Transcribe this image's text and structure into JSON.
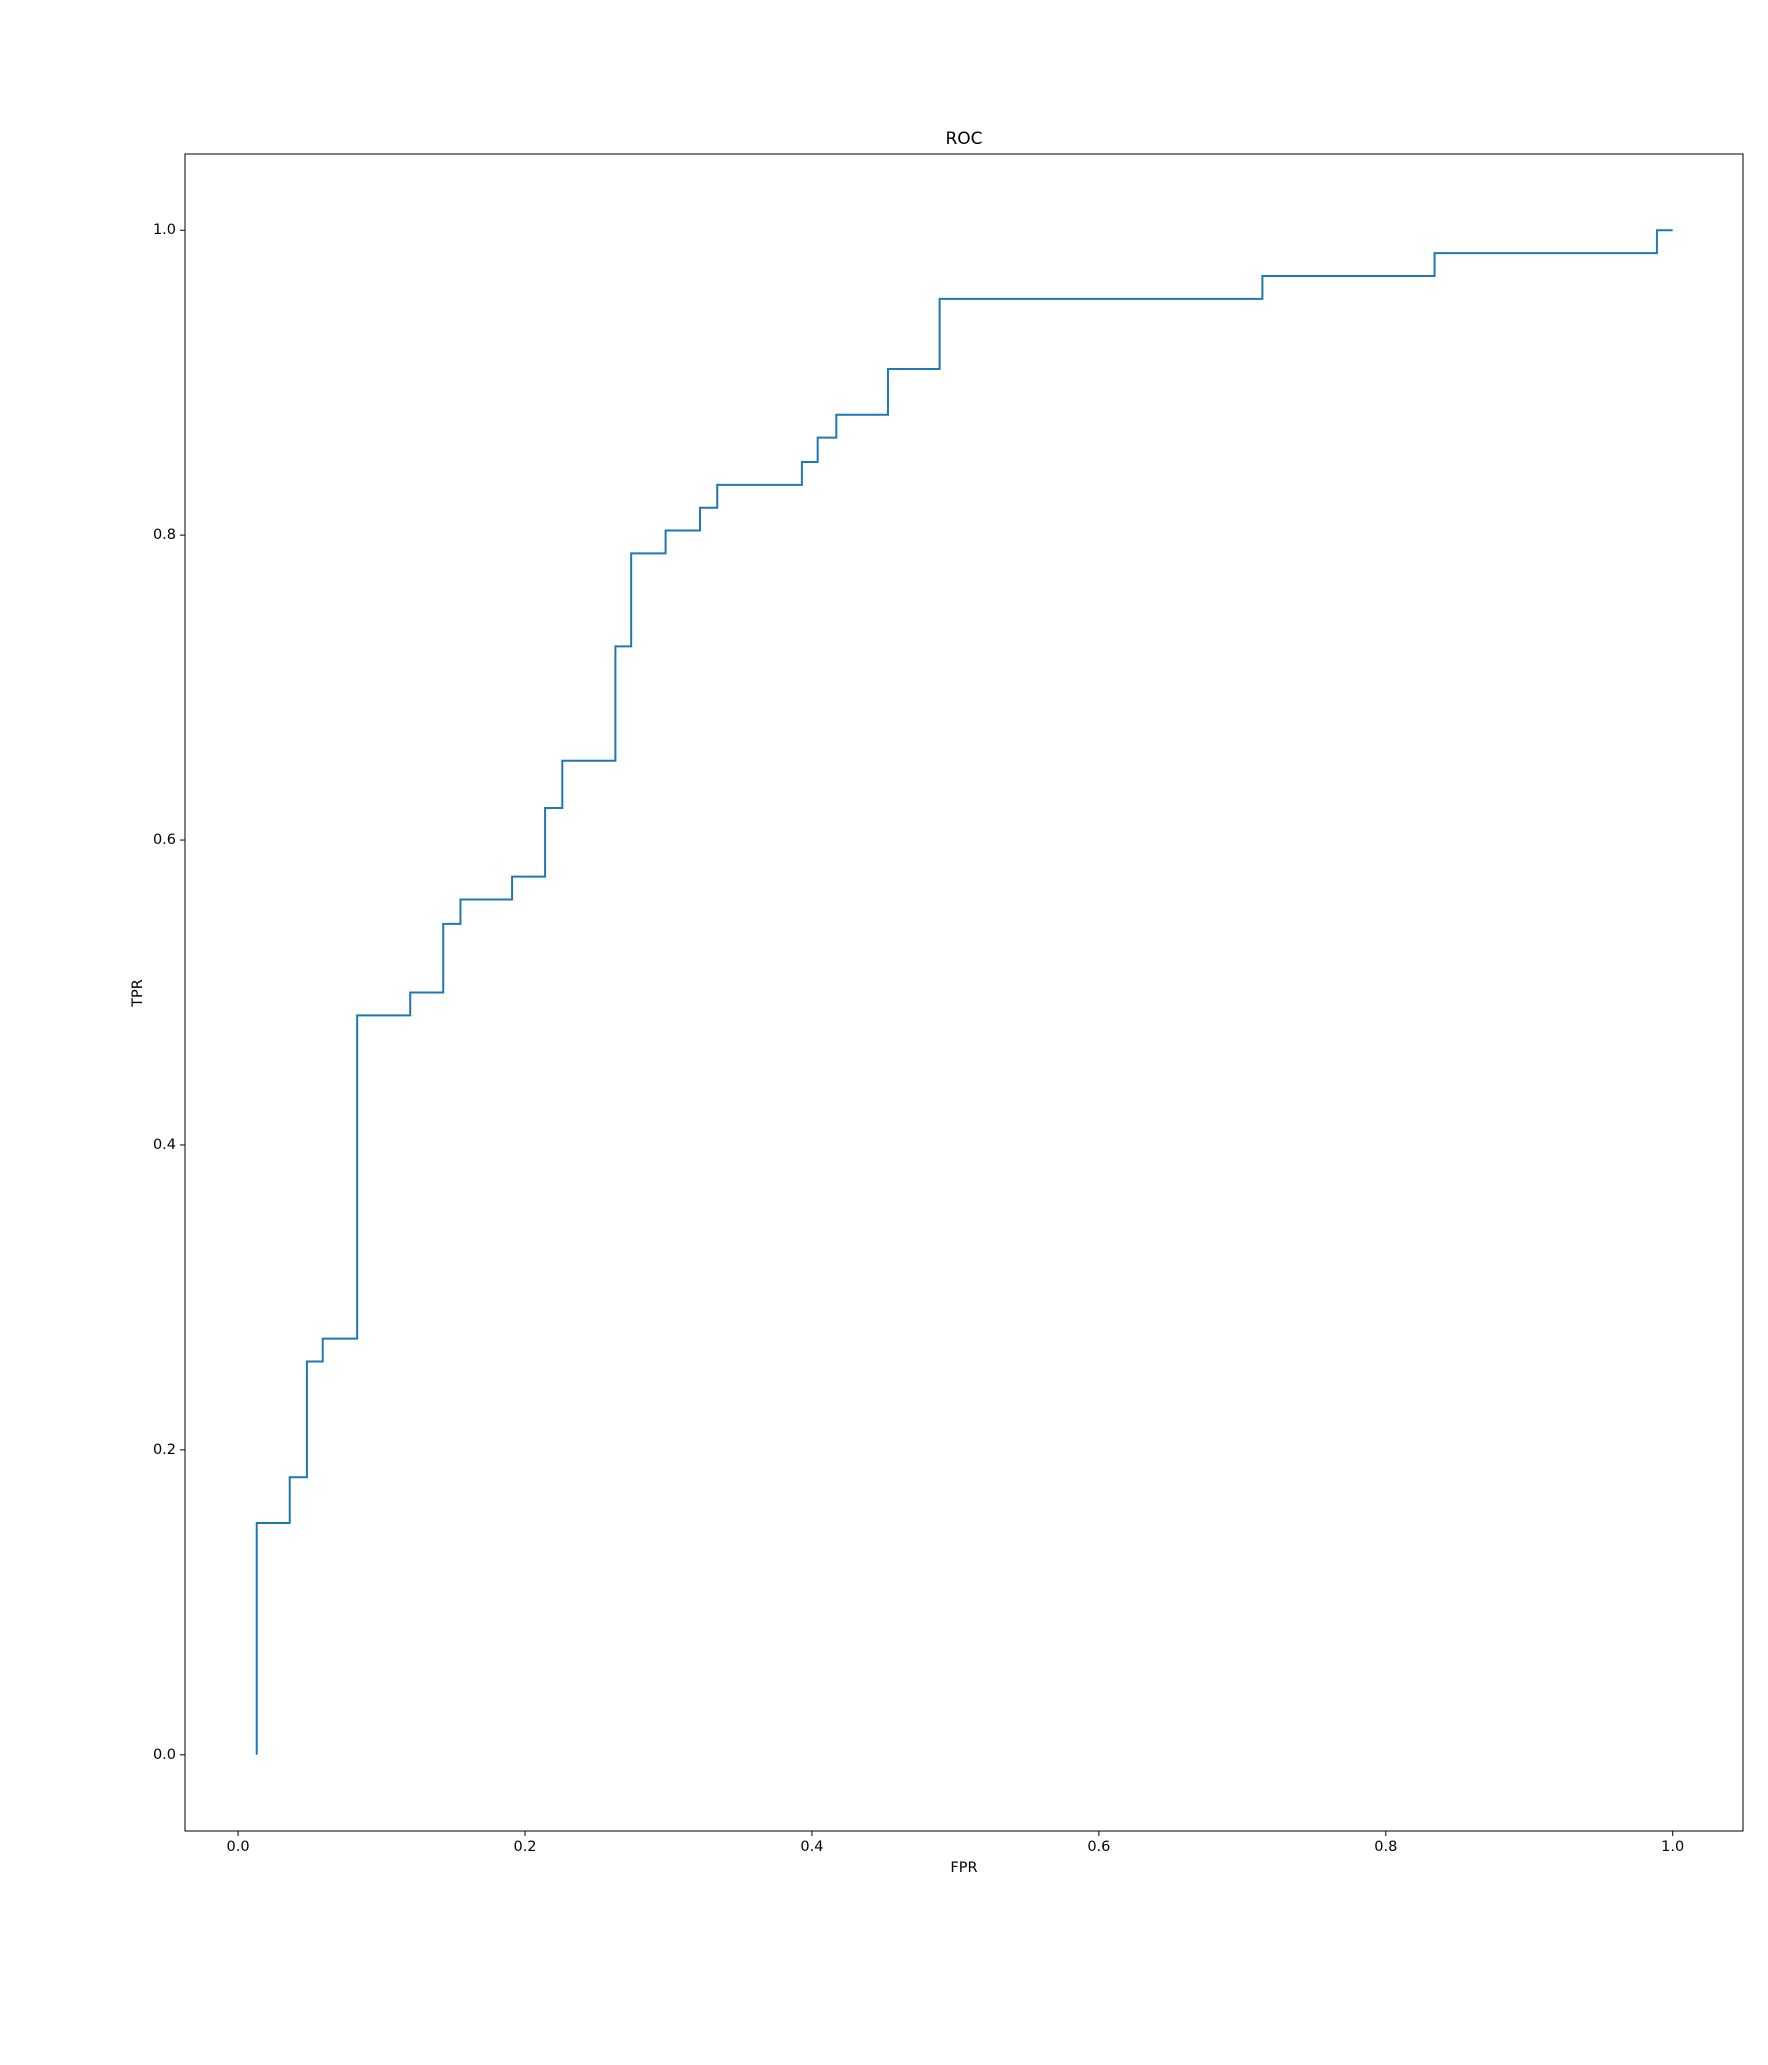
{
  "chart_data": {
    "type": "line",
    "title": "ROC",
    "x_label": "FPR",
    "y_label": "TPR",
    "x": [
      0.013,
      0.013,
      0.036,
      0.036,
      0.048,
      0.048,
      0.059,
      0.059,
      0.083,
      0.083,
      0.12,
      0.12,
      0.143,
      0.143,
      0.155,
      0.155,
      0.191,
      0.191,
      0.214,
      0.214,
      0.226,
      0.226,
      0.263,
      0.263,
      0.274,
      0.274,
      0.298,
      0.298,
      0.322,
      0.322,
      0.334,
      0.334,
      0.393,
      0.393,
      0.404,
      0.404,
      0.417,
      0.417,
      0.453,
      0.453,
      0.489,
      0.489,
      0.714,
      0.714,
      0.834,
      0.834,
      0.989,
      0.989,
      1.0
    ],
    "values": [
      0,
      0.152,
      0.152,
      0.182,
      0.182,
      0.258,
      0.258,
      0.273,
      0.273,
      0.485,
      0.485,
      0.5,
      0.5,
      0.545,
      0.545,
      0.561,
      0.561,
      0.576,
      0.576,
      0.621,
      0.621,
      0.652,
      0.652,
      0.727,
      0.727,
      0.788,
      0.788,
      0.803,
      0.803,
      0.818,
      0.818,
      0.833,
      0.833,
      0.848,
      0.848,
      0.864,
      0.864,
      0.879,
      0.879,
      0.909,
      0.909,
      0.955,
      0.955,
      0.97,
      0.97,
      0.985,
      0.985,
      1.0,
      1.0
    ],
    "color": "#1f77b4",
    "xlim": [
      -0.037,
      1.049
    ],
    "ylim": [
      -0.05,
      1.05
    ],
    "xticks": [
      {
        "value": 0,
        "label": "0.0"
      },
      0.2,
      0.4,
      0.6,
      0.8,
      {
        "value": 1,
        "label": "1.0"
      }
    ],
    "yticks": [
      {
        "value": 0,
        "label": "0.0"
      },
      0.2,
      0.4,
      0.6,
      0.8,
      {
        "value": 1,
        "label": "1.0"
      }
    ],
    "grid": false
  }
}
